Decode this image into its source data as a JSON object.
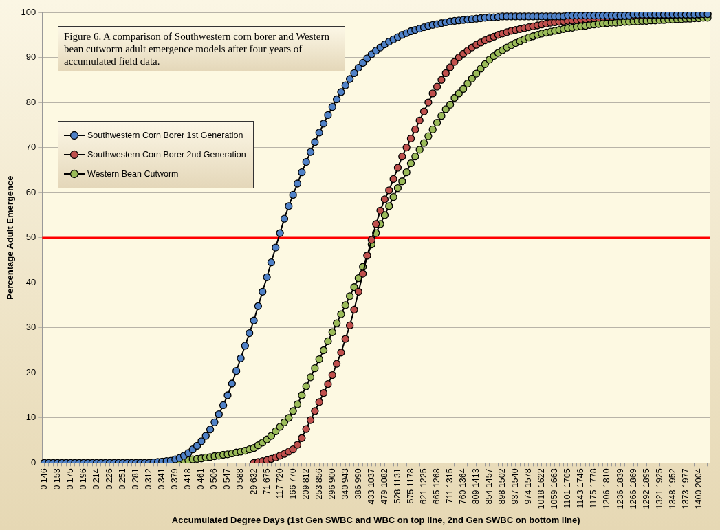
{
  "chart_data": {
    "type": "line",
    "title": "Figure 6. A comparison of Southwestern corn borer and Western bean cutworm adult emergence models after four years of accumulated field data.",
    "xlabel": "Accumulated Degree Days (1st Gen SWBC and WBC on top line, 2nd Gen SWBC on bottom line)",
    "ylabel": "Percentage Adult Emergence",
    "categories": [
      "0 146",
      null,
      null,
      "0 153",
      null,
      null,
      "0 175",
      null,
      null,
      "0 196",
      null,
      null,
      "0 214",
      null,
      null,
      "0 226",
      null,
      null,
      "0 251",
      null,
      null,
      "0 281",
      null,
      null,
      "0 312",
      null,
      null,
      "0 341",
      null,
      null,
      "0 379",
      null,
      null,
      "0 418",
      null,
      null,
      "0 461",
      null,
      null,
      "0 506",
      null,
      null,
      "0 547",
      null,
      null,
      "0 588",
      null,
      null,
      "29 632",
      null,
      null,
      "71 675",
      null,
      null,
      "117 720",
      null,
      null,
      "166 770",
      null,
      null,
      "209 812",
      null,
      null,
      "253 856",
      null,
      null,
      "296 900",
      null,
      null,
      "340 943",
      null,
      null,
      "386 990",
      null,
      null,
      "433 1037",
      null,
      null,
      "479 1082",
      null,
      null,
      "528 1131",
      null,
      null,
      "575 1178",
      null,
      null,
      "621 1225",
      null,
      null,
      "665 1268",
      null,
      null,
      "711 1315",
      null,
      null,
      "760 1364",
      null,
      null,
      "809 1413",
      null,
      null,
      "854 1457",
      null,
      null,
      "898 1502",
      null,
      null,
      "937 1540",
      null,
      null,
      "974 1578",
      null,
      null,
      "1018 1622",
      null,
      null,
      "1059 1663",
      null,
      null,
      "1101 1705",
      null,
      null,
      "1143 1746",
      null,
      null,
      "1175 1778",
      null,
      null,
      "1206 1810",
      null,
      null,
      "1236 1839",
      null,
      null,
      "1266 1869",
      null,
      null,
      "1292 1895",
      null,
      null,
      "1321 1925",
      null,
      null,
      "1348 1952",
      null,
      null,
      "1373 1977",
      null,
      null,
      "1400 2004",
      null,
      null
    ],
    "series": [
      {
        "name": "Southwestern Corn Borer 1st Generation",
        "color": "#4f81c7",
        "values": [
          0,
          0,
          0,
          0,
          0,
          0,
          0,
          0,
          0,
          0,
          0,
          0,
          0,
          0,
          0,
          0,
          0,
          0,
          0,
          0,
          0,
          0,
          0,
          0,
          0,
          0.1,
          0.2,
          0.3,
          0.4,
          0.5,
          0.8,
          1.1,
          1.6,
          2.2,
          3,
          3.8,
          4.8,
          6,
          7.4,
          9,
          10.8,
          12.8,
          15,
          17.6,
          20.4,
          23.2,
          26,
          28.8,
          31.6,
          34.8,
          38,
          41.2,
          44.5,
          47.8,
          51,
          54.2,
          57,
          59.5,
          62,
          64.5,
          66.8,
          69,
          71.2,
          73.3,
          75.3,
          77.2,
          79,
          80.7,
          82.3,
          83.8,
          85.2,
          86.5,
          87.7,
          88.8,
          89.8,
          90.7,
          91.5,
          92.2,
          92.9,
          93.5,
          94,
          94.5,
          95,
          95.4,
          95.8,
          96.1,
          96.4,
          96.7,
          97,
          97.2,
          97.4,
          97.6,
          97.8,
          98,
          98.1,
          98.2,
          98.3,
          98.4,
          98.5,
          98.6,
          98.7,
          98.8,
          98.9,
          98.9,
          99,
          99.1,
          99.1,
          99.1,
          99.1,
          99.1,
          99.1,
          99.1,
          99.1,
          99.1,
          99.1,
          99.1,
          99.1,
          99.1,
          99.1,
          99.1,
          99.3,
          99.3,
          99.3,
          99.3,
          99.3,
          99.3,
          99.3,
          99.3,
          99.3,
          99.3,
          99.3,
          99.3,
          99.3,
          99.3,
          99.3,
          99.5,
          99.5,
          99.5,
          99.5,
          99.5,
          99.5,
          99.5,
          99.5,
          99.5,
          99.5,
          99.5,
          99.5,
          99.5,
          99.5,
          99.5,
          99.6,
          99.6,
          99.6
        ]
      },
      {
        "name": "Southwestern Corn Borer 2nd Generation",
        "color": "#c0504d",
        "values": [
          null,
          null,
          null,
          null,
          null,
          null,
          null,
          null,
          null,
          null,
          null,
          null,
          null,
          null,
          null,
          null,
          null,
          null,
          null,
          null,
          null,
          null,
          null,
          null,
          null,
          null,
          null,
          null,
          null,
          null,
          null,
          null,
          null,
          null,
          null,
          null,
          null,
          null,
          null,
          null,
          null,
          null,
          null,
          null,
          null,
          null,
          null,
          null,
          0,
          0.2,
          0.4,
          0.6,
          0.9,
          1.2,
          1.6,
          2,
          2.5,
          3,
          4,
          5.5,
          7.5,
          9.5,
          11.5,
          13.5,
          15.5,
          17.5,
          19.5,
          22,
          24.5,
          27.5,
          30.5,
          34,
          38,
          42,
          46,
          49.5,
          53,
          56,
          58.5,
          60.5,
          63,
          65.5,
          68,
          70,
          72,
          74,
          76,
          78,
          80,
          82,
          83.5,
          85,
          86.5,
          87.8,
          89,
          90,
          90.8,
          91.5,
          92.2,
          92.8,
          93.3,
          93.8,
          94.2,
          94.6,
          95,
          95.3,
          95.6,
          95.9,
          96.1,
          96.3,
          96.5,
          96.7,
          96.9,
          97.1,
          97.3,
          97.5,
          97.7,
          97.8,
          97.9,
          98,
          98.1,
          98.2,
          98.3,
          98.4,
          98.5,
          98.6,
          98.7,
          98.8,
          98.9,
          99,
          99,
          99.1,
          99.1,
          99.2,
          99.2,
          99.2,
          99.3,
          99.3,
          99.3,
          99.4,
          99.4,
          99.4,
          99.4,
          99.4,
          99.4,
          99.5,
          99.5,
          99.5,
          99.5,
          99.5,
          99.5,
          99.6,
          99.6
        ]
      },
      {
        "name": "Western Bean Cutworm",
        "color": "#9bbb59",
        "values": [
          0,
          0,
          0,
          0,
          0,
          0,
          0,
          0,
          0,
          0,
          0,
          0,
          0,
          0,
          0,
          0,
          0,
          0,
          0,
          0,
          0,
          0,
          0,
          0,
          0,
          0,
          0.1,
          0.1,
          0.2,
          0.2,
          0.3,
          0.4,
          0.5,
          0.6,
          0.8,
          0.9,
          1,
          1.2,
          1.3,
          1.5,
          1.6,
          1.8,
          1.9,
          2.1,
          2.3,
          2.5,
          2.7,
          3,
          3.3,
          3.9,
          4.5,
          5.2,
          6,
          7,
          8,
          9,
          10,
          11.5,
          13,
          15,
          17,
          19,
          21,
          23,
          25,
          27,
          29,
          31,
          33,
          35,
          37,
          39,
          41,
          43.5,
          46,
          48.5,
          51,
          53,
          55,
          57,
          59,
          61,
          62.5,
          64.5,
          66.5,
          68,
          69.5,
          71,
          72.5,
          74,
          75.5,
          77,
          78.5,
          79.5,
          81,
          82,
          83,
          84.2,
          85.3,
          86.4,
          87.5,
          88.5,
          89.5,
          90.3,
          91,
          91.6,
          92.2,
          92.7,
          93.2,
          93.6,
          94,
          94.4,
          94.7,
          95,
          95.3,
          95.5,
          95.7,
          95.9,
          96.1,
          96.3,
          96.5,
          96.6,
          96.8,
          96.9,
          97,
          97.2,
          97.3,
          97.4,
          97.5,
          97.6,
          97.7,
          97.7,
          97.8,
          97.9,
          97.9,
          98,
          98,
          98.1,
          98.1,
          98.2,
          98.2,
          98.3,
          98.3,
          98.4,
          98.4,
          98.5,
          98.5,
          98.6,
          98.6,
          98.7,
          98.7,
          98.8,
          98.8
        ]
      }
    ],
    "ylim": [
      0,
      100
    ],
    "yticks": [
      0,
      10,
      20,
      30,
      40,
      50,
      60,
      70,
      80,
      90,
      100
    ],
    "grid": "y",
    "legend": "top left",
    "marker": "circle",
    "line_style": "solid",
    "ref_lines": [
      {
        "axis": "y",
        "value": 50,
        "color": "#ff0000"
      }
    ]
  }
}
